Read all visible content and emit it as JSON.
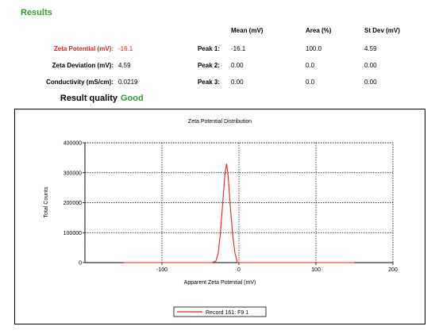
{
  "results": {
    "title": "Results",
    "columns": [
      "Mean (mV)",
      "Area (%)",
      "St Dev (mV)"
    ],
    "left_rows": [
      {
        "label": "Zeta Potential (mV):",
        "value": "-16.1"
      },
      {
        "label": "Zeta Deviation (mV):",
        "value": "4.59"
      },
      {
        "label": "Conductivity (mS/cm):",
        "value": "0.0219"
      }
    ],
    "peaks": [
      {
        "label": "Peak 1:",
        "mean": "-16.1",
        "area": "100.0",
        "stdev": "4.59"
      },
      {
        "label": "Peak 2:",
        "mean": "0.00",
        "area": "0.0",
        "stdev": "0.00"
      },
      {
        "label": "Peak 3:",
        "mean": "0.00",
        "area": "0.0",
        "stdev": "0.00"
      }
    ],
    "quality_label": "Result quality",
    "quality_value": "Good"
  },
  "colors": {
    "green": "#2e9b2e",
    "red": "#e02020"
  },
  "chart_data": {
    "type": "line",
    "title": "Zeta Potential Distribution",
    "xlabel": "Apparent Zeta Potential (mV)",
    "ylabel": "Total Counts",
    "xlim": [
      -200,
      200
    ],
    "ylim": [
      0,
      400000
    ],
    "xticks": [
      -100,
      0,
      100,
      200
    ],
    "yticks": [
      0,
      100000,
      200000,
      300000,
      400000
    ],
    "grid": true,
    "legend_position": "bottom",
    "series": [
      {
        "name": "Record 161: F9 1",
        "color": "#e02020",
        "x": [
          -150,
          -35,
          -30,
          -27,
          -24,
          -21,
          -18,
          -16.1,
          -14,
          -11,
          -8,
          -5,
          -2,
          150
        ],
        "y": [
          0,
          0,
          5000,
          30000,
          100000,
          200000,
          300000,
          330000,
          290000,
          180000,
          90000,
          30000,
          0,
          0
        ]
      }
    ]
  }
}
